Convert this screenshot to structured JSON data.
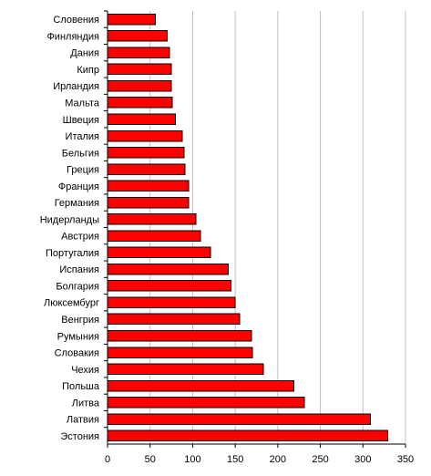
{
  "chart_data": {
    "type": "bar",
    "orientation": "horizontal",
    "categories": [
      "Словения",
      "Финляндия",
      "Дания",
      "Кипр",
      "Ирландия",
      "Мальта",
      "Швеция",
      "Италия",
      "Бельгия",
      "Греция",
      "Франция",
      "Германия",
      "Нидерланды",
      "Австрия",
      "Португалия",
      "Испания",
      "Болгария",
      "Люксембург",
      "Венгрия",
      "Румыния",
      "Словакия",
      "Чехия",
      "Польша",
      "Литва",
      "Латвия",
      "Эстония"
    ],
    "values": [
      56,
      70,
      73,
      75,
      75,
      76,
      80,
      88,
      90,
      91,
      95,
      95,
      104,
      109,
      121,
      142,
      145,
      150,
      155,
      169,
      170,
      183,
      219,
      231,
      309,
      329
    ],
    "xlim": [
      0,
      350
    ],
    "xticks": [
      0,
      50,
      100,
      150,
      200,
      250,
      300,
      350
    ],
    "grid": true,
    "bar_color": "#ff0000",
    "title": "",
    "xlabel": "",
    "ylabel": ""
  }
}
